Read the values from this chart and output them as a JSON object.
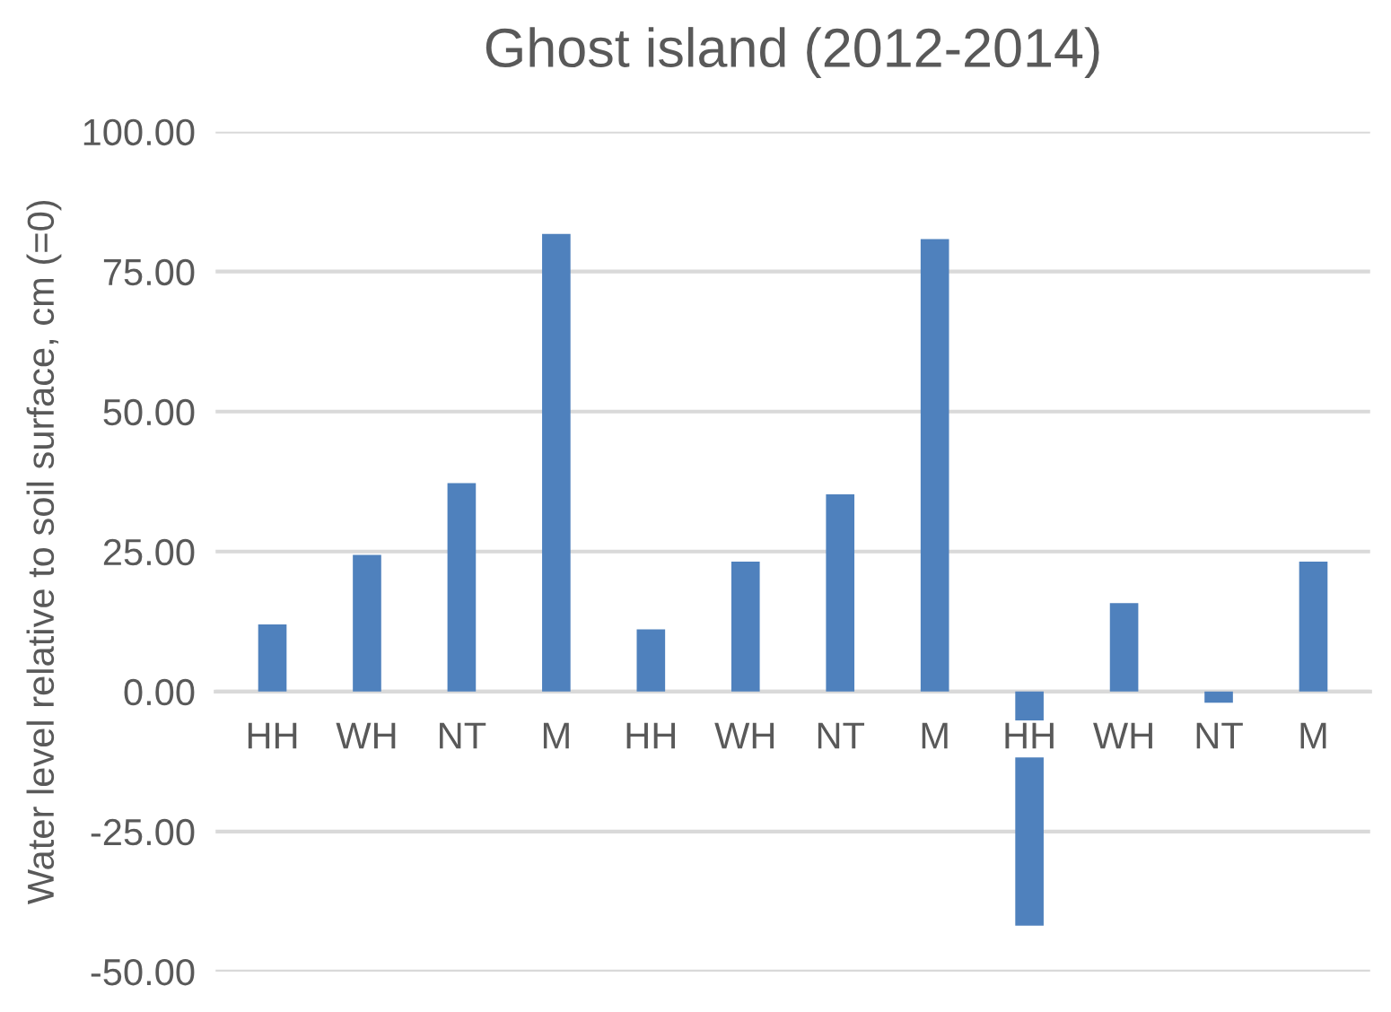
{
  "chart_data": {
    "type": "bar",
    "title": "Ghost island (2012-2014)",
    "ylabel": "Water level relative to soil surface, cm (=0)",
    "categories": [
      "HH",
      "WH",
      "NT",
      "M",
      "HH",
      "WH",
      "NT",
      "M",
      "HH",
      "WH",
      "NT",
      "M"
    ],
    "values": [
      12.0,
      24.4,
      37.2,
      81.7,
      11.1,
      23.2,
      35.2,
      80.8,
      -41.8,
      15.8,
      -2.0,
      23.2
    ],
    "color": "#4f81bd",
    "ylim": [
      -50,
      100
    ],
    "yticks": [
      {
        "value": -50,
        "label": "-50.00"
      },
      {
        "value": -25,
        "label": "-25.00"
      },
      {
        "value": 0,
        "label": "0.00"
      },
      {
        "value": 25,
        "label": "25.00"
      },
      {
        "value": 50,
        "label": "50.00"
      },
      {
        "value": 75,
        "label": "75.00"
      },
      {
        "value": 100,
        "label": "100.00"
      }
    ],
    "grid": "y"
  }
}
